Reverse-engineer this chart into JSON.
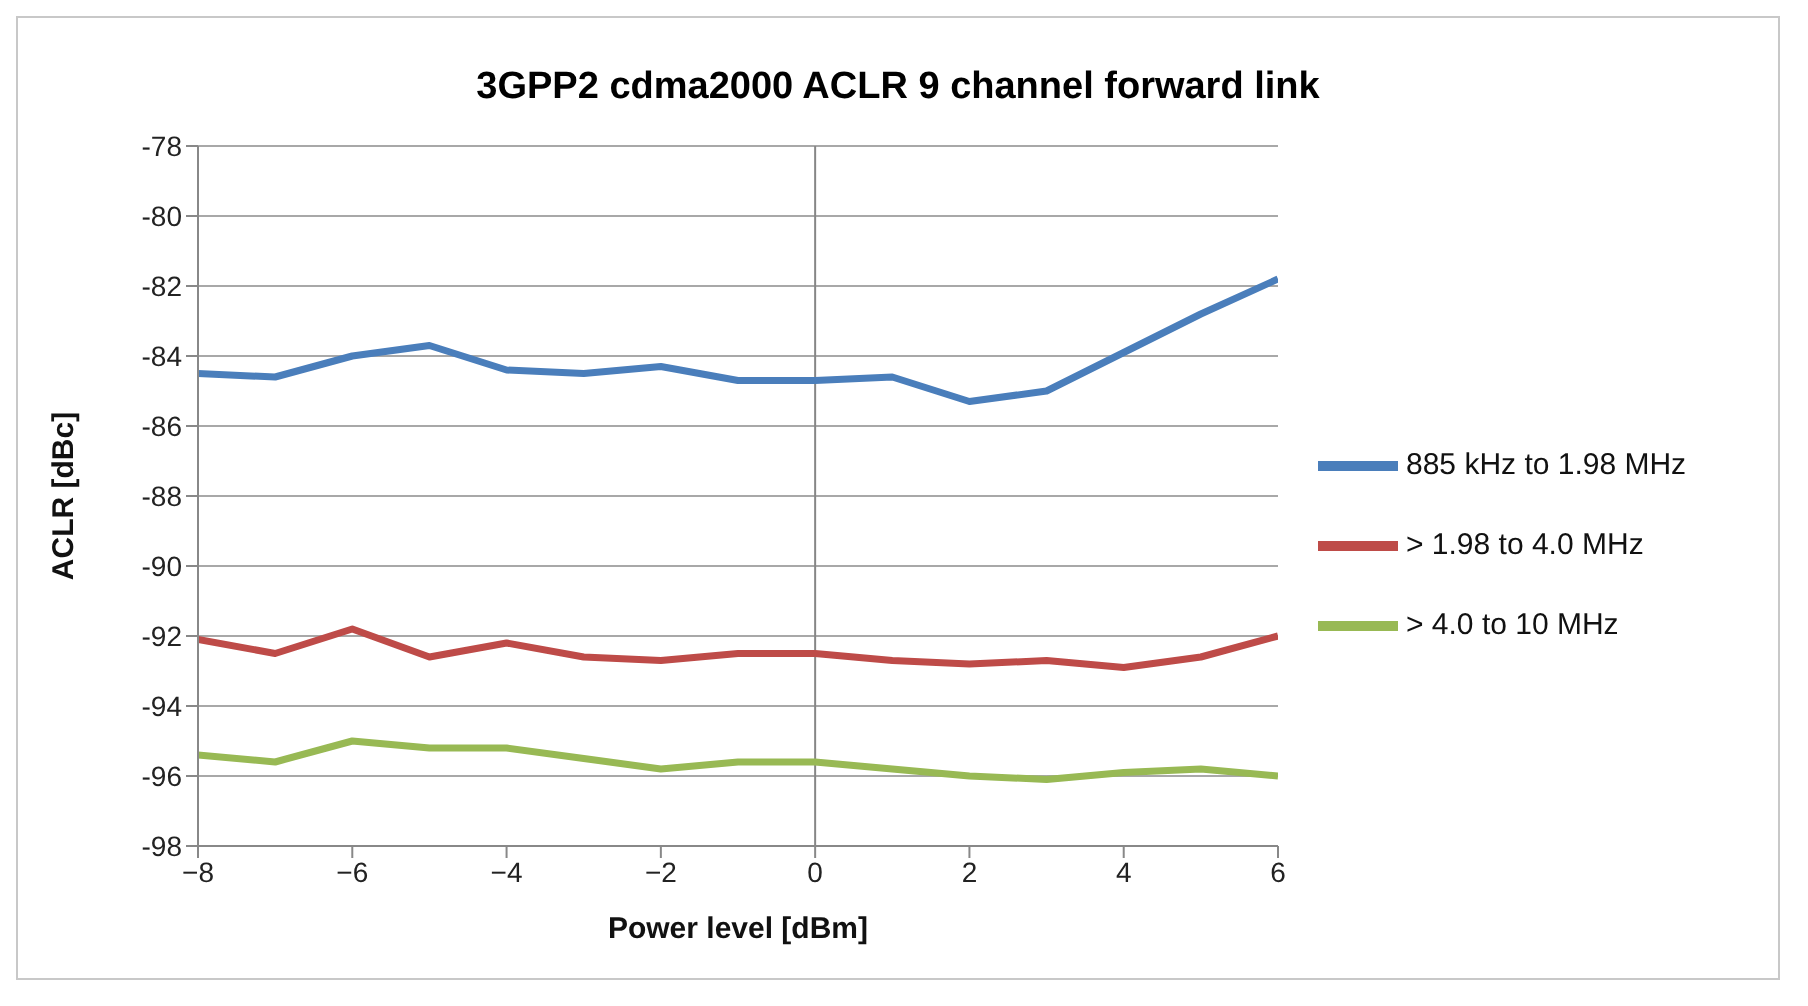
{
  "chart_data": {
    "type": "line",
    "title": "3GPP2 cdma2000 ACLR 9 channel forward link",
    "xlabel": "Power level [dBm]",
    "ylabel": "ACLR [dBc]",
    "x": [
      -8,
      -7,
      -6,
      -5,
      -4,
      -3,
      -2,
      -1,
      0,
      1,
      2,
      3,
      4,
      5,
      6
    ],
    "series": [
      {
        "name": "885 kHz to 1.98 MHz",
        "color": "#4a7ebb",
        "values": [
          -84.5,
          -84.6,
          -84.0,
          -83.7,
          -84.4,
          -84.5,
          -84.3,
          -84.7,
          -84.7,
          -84.6,
          -85.3,
          -85.0,
          -83.9,
          -82.8,
          -81.8
        ]
      },
      {
        "name": "> 1.98 to 4.0 MHz",
        "color": "#be4b48",
        "values": [
          -92.1,
          -92.5,
          -91.8,
          -92.6,
          -92.2,
          -92.6,
          -92.7,
          -92.5,
          -92.5,
          -92.7,
          -92.8,
          -92.7,
          -92.9,
          -92.6,
          -92.0
        ]
      },
      {
        "name": "> 4.0 to 10 MHz",
        "color": "#98b954",
        "values": [
          -95.4,
          -95.6,
          -95.0,
          -95.2,
          -95.2,
          -95.5,
          -95.8,
          -95.6,
          -95.6,
          -95.8,
          -96.0,
          -96.1,
          -95.9,
          -95.8,
          -96.0
        ]
      }
    ],
    "xlim": [
      -8,
      6
    ],
    "xticks": [
      -8,
      -6,
      -4,
      -2,
      0,
      2,
      4,
      6
    ],
    "ylim": [
      -98,
      -78
    ],
    "yticks": [
      -98,
      -96,
      -94,
      -92,
      -90,
      -88,
      -86,
      -84,
      -82,
      -80,
      -78
    ],
    "ref_lines": [
      {
        "axis": "x",
        "value": 0,
        "color": "#868686"
      }
    ],
    "grid": "y",
    "legend": "right",
    "marker": "none",
    "line_style": "solid"
  }
}
